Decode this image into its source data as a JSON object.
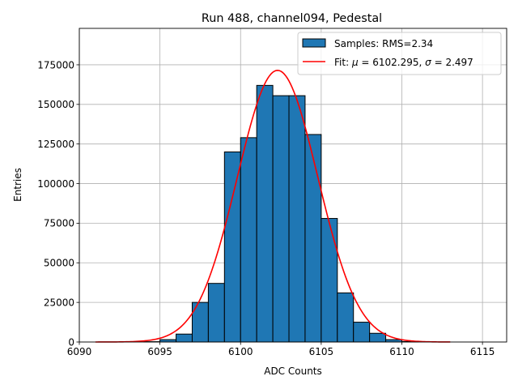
{
  "chart_data": {
    "type": "bar",
    "title": "Run 488, channel094, Pedestal",
    "xlabel": "ADC Counts",
    "ylabel": "Entries",
    "xlim": [
      6090,
      6116.5
    ],
    "ylim": [
      0,
      198000
    ],
    "grid": true,
    "legend_position": "upper-right",
    "x_ticks": [
      6090,
      6095,
      6100,
      6105,
      6110,
      6115
    ],
    "y_ticks": [
      0,
      25000,
      50000,
      75000,
      100000,
      125000,
      150000,
      175000
    ],
    "histogram": {
      "name": "Samples: RMS=2.34",
      "color": "#1f77b4",
      "edgecolor": "#000000",
      "bins": [
        {
          "x0": 6094,
          "x1": 6095,
          "count": 200
        },
        {
          "x0": 6095,
          "x1": 6096,
          "count": 1500
        },
        {
          "x0": 6096,
          "x1": 6097,
          "count": 5000
        },
        {
          "x0": 6097,
          "x1": 6098,
          "count": 25000
        },
        {
          "x0": 6098,
          "x1": 6099,
          "count": 37000
        },
        {
          "x0": 6099,
          "x1": 6100,
          "count": 120000
        },
        {
          "x0": 6100,
          "x1": 6101,
          "count": 129000
        },
        {
          "x0": 6101,
          "x1": 6102,
          "count": 162000
        },
        {
          "x0": 6102,
          "x1": 6103,
          "count": 155500
        },
        {
          "x0": 6103,
          "x1": 6104,
          "count": 155500
        },
        {
          "x0": 6104,
          "x1": 6105,
          "count": 131000
        },
        {
          "x0": 6105,
          "x1": 6106,
          "count": 78000
        },
        {
          "x0": 6106,
          "x1": 6107,
          "count": 31000
        },
        {
          "x0": 6107,
          "x1": 6108,
          "count": 12500
        },
        {
          "x0": 6108,
          "x1": 6109,
          "count": 5500
        },
        {
          "x0": 6109,
          "x1": 6110,
          "count": 1500
        },
        {
          "x0": 6110,
          "x1": 6111,
          "count": 300
        }
      ]
    },
    "fit": {
      "name_prefix": "Fit: ",
      "mu_symbol": "μ",
      "mu_text": " = 6102.295, ",
      "sigma_symbol": "σ",
      "sigma_text": " = 2.497",
      "color": "#ff0000",
      "mu": 6102.295,
      "sigma": 2.497,
      "amplitude": 171500,
      "x_range": [
        6091,
        6113
      ]
    }
  }
}
